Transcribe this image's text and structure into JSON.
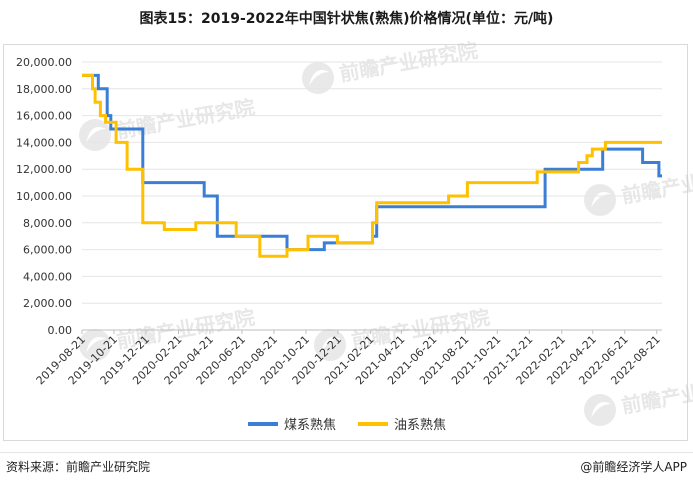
{
  "title": "图表15：2019-2022年中国针状焦(熟焦)价格情况(单位：元/吨)",
  "footer": {
    "source": "资料来源：前瞻产业研究院",
    "brand": "@前瞻经济学人APP"
  },
  "watermark": "前瞻产业研究院",
  "chart_data": {
    "type": "line",
    "title": "图表15：2019-2022年中国针状焦(熟焦)价格情况(单位：元/吨)",
    "xlabel": "",
    "ylabel": "",
    "ylim": [
      0,
      20000
    ],
    "yticks": [
      "0.00",
      "2,000.00",
      "4,000.00",
      "6,000.00",
      "8,000.00",
      "10,000.00",
      "12,000.00",
      "14,000.00",
      "16,000.00",
      "18,000.00",
      "20,000.00"
    ],
    "xticks": [
      "2019-08-21",
      "2019-10-21",
      "2019-12-21",
      "2020-02-21",
      "2020-04-21",
      "2020-06-21",
      "2020-08-21",
      "2020-10-21",
      "2020-12-21",
      "2021-02-21",
      "2021-04-21",
      "2021-06-21",
      "2021-08-21",
      "2021-10-21",
      "2021-12-21",
      "2022-02-21",
      "2022-04-21",
      "2022-06-21",
      "2022-08-21"
    ],
    "x_range": [
      "2019-08-21",
      "2022-08-31"
    ],
    "grid": "horizontal",
    "legend": "bottom-center",
    "series": [
      {
        "name": "煤系熟焦",
        "color": "#3A7FD5",
        "points": [
          [
            "2019-08-21",
            19000
          ],
          [
            "2019-09-21",
            19000
          ],
          [
            "2019-09-21",
            18000
          ],
          [
            "2019-10-08",
            18000
          ],
          [
            "2019-10-08",
            16000
          ],
          [
            "2019-10-15",
            16000
          ],
          [
            "2019-10-15",
            15000
          ],
          [
            "2019-12-15",
            15000
          ],
          [
            "2019-12-15",
            11000
          ],
          [
            "2020-04-10",
            11000
          ],
          [
            "2020-04-10",
            10000
          ],
          [
            "2020-05-05",
            10000
          ],
          [
            "2020-05-05",
            7000
          ],
          [
            "2020-09-15",
            7000
          ],
          [
            "2020-09-15",
            6000
          ],
          [
            "2020-11-25",
            6000
          ],
          [
            "2020-11-25",
            6500
          ],
          [
            "2021-02-25",
            6500
          ],
          [
            "2021-02-25",
            7000
          ],
          [
            "2021-03-05",
            7000
          ],
          [
            "2021-03-05",
            9200
          ],
          [
            "2022-01-20",
            9200
          ],
          [
            "2022-01-20",
            12000
          ],
          [
            "2022-05-10",
            12000
          ],
          [
            "2022-05-10",
            13500
          ],
          [
            "2022-07-25",
            13500
          ],
          [
            "2022-07-25",
            12500
          ],
          [
            "2022-08-25",
            12500
          ],
          [
            "2022-08-25",
            11500
          ],
          [
            "2022-08-31",
            11500
          ]
        ]
      },
      {
        "name": "油系熟焦",
        "color": "#FFC000",
        "points": [
          [
            "2019-08-21",
            19000
          ],
          [
            "2019-09-10",
            19000
          ],
          [
            "2019-09-10",
            18000
          ],
          [
            "2019-09-15",
            18000
          ],
          [
            "2019-09-15",
            17000
          ],
          [
            "2019-09-25",
            17000
          ],
          [
            "2019-09-25",
            16000
          ],
          [
            "2019-10-05",
            16000
          ],
          [
            "2019-10-05",
            15500
          ],
          [
            "2019-10-25",
            15500
          ],
          [
            "2019-10-25",
            14000
          ],
          [
            "2019-11-15",
            14000
          ],
          [
            "2019-11-15",
            12000
          ],
          [
            "2019-12-15",
            12000
          ],
          [
            "2019-12-15",
            8000
          ],
          [
            "2020-01-25",
            8000
          ],
          [
            "2020-01-25",
            7500
          ],
          [
            "2020-03-25",
            7500
          ],
          [
            "2020-03-25",
            8000
          ],
          [
            "2020-06-10",
            8000
          ],
          [
            "2020-06-10",
            7000
          ],
          [
            "2020-07-25",
            7000
          ],
          [
            "2020-07-25",
            5500
          ],
          [
            "2020-09-15",
            5500
          ],
          [
            "2020-09-15",
            6000
          ],
          [
            "2020-10-25",
            6000
          ],
          [
            "2020-10-25",
            7000
          ],
          [
            "2020-12-20",
            7000
          ],
          [
            "2020-12-20",
            6500
          ],
          [
            "2021-02-25",
            6500
          ],
          [
            "2021-02-25",
            8000
          ],
          [
            "2021-03-05",
            8000
          ],
          [
            "2021-03-05",
            9500
          ],
          [
            "2021-07-20",
            9500
          ],
          [
            "2021-07-20",
            10000
          ],
          [
            "2021-08-25",
            10000
          ],
          [
            "2021-08-25",
            11000
          ],
          [
            "2022-01-05",
            11000
          ],
          [
            "2022-01-05",
            11800
          ],
          [
            "2022-03-25",
            11800
          ],
          [
            "2022-03-25",
            12500
          ],
          [
            "2022-04-10",
            12500
          ],
          [
            "2022-04-10",
            13000
          ],
          [
            "2022-04-20",
            13000
          ],
          [
            "2022-04-20",
            13500
          ],
          [
            "2022-05-15",
            13500
          ],
          [
            "2022-05-15",
            14000
          ],
          [
            "2022-08-31",
            14000
          ]
        ]
      }
    ]
  }
}
